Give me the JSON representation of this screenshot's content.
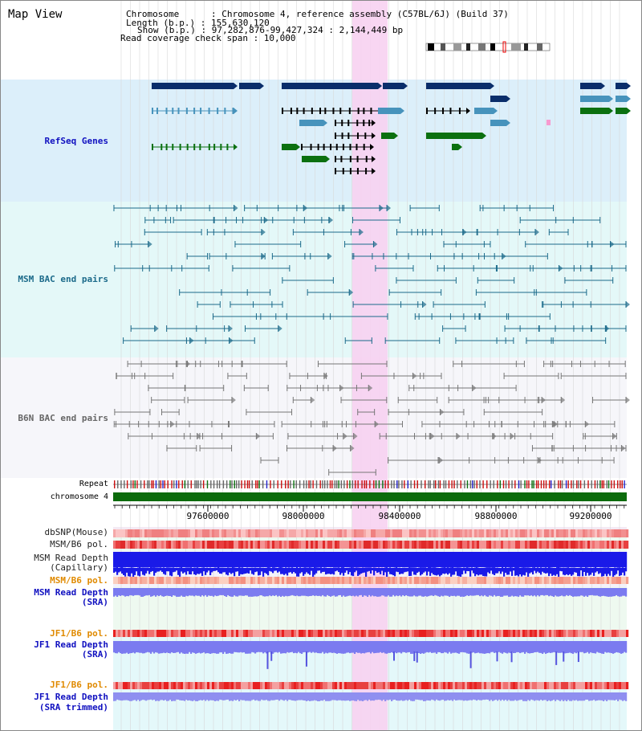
{
  "view_title": "Map View",
  "info": {
    "chromosome_line": "Chromosome      : Chromosome 4, reference assembly (C57BL/6J) (Build 37)",
    "length_line": "Length (b.p.) : 155,630,120",
    "show_line": "Show (b.p.) : 97,282,876-99,427,324 : 2,144,449 bp",
    "coverage_line": "Read coverage check span : 10,000"
  },
  "colors": {
    "refseq_bg": "#dceffa",
    "msm_bac_bg": "#e4f8f8",
    "b6n_bac_bg": "#f6f6fa",
    "highlight": "#f7d2f1",
    "gene_dark": "#0a2d6a",
    "gene_mid": "#4793bc",
    "gene_green": "#0b7010",
    "msm_line": "#1b6a8a",
    "b6n_line": "#777777",
    "chromosome_bar": "#0c6b0c",
    "snp_pink": "#f29a9a",
    "pol_red": "#e04040",
    "capillary_blue": "#1a1ae8",
    "sra_blue": "#7b7bf0",
    "sra_trimmed_blue": "#8f8ff0"
  },
  "tracks": {
    "refseq_genes": "RefSeq Genes",
    "msm_bac": "MSM BAC end pairs",
    "b6n_bac": "B6N BAC end pairs",
    "repeat": "Repeat",
    "chromosome": "chromosome 4",
    "dbsnp": "dbSNP(Mouse)",
    "msm_b6_pol_1": "MSM/B6 pol.",
    "msm_depth_cap_1": "MSM Read Depth",
    "msm_depth_cap_2": "(Capillary)",
    "msm_b6_pol_2": "MSM/B6 pol.",
    "msm_depth_sra_1": "MSM Read Depth",
    "msm_depth_sra_2": "(SRA)",
    "jf1_pol_1": "JF1/B6 pol.",
    "jf1_depth_sra_1": "JF1 Read Depth",
    "jf1_depth_sra_2": "(SRA)",
    "jf1_pol_2": "JF1/B6 pol.",
    "jf1_depth_trim_1": "JF1 Read Depth",
    "jf1_depth_trim_2": "(SRA trimmed)"
  },
  "axis": {
    "ticks": [
      "97600000",
      "98000000",
      "98400000",
      "98800000",
      "99200000"
    ]
  }
}
